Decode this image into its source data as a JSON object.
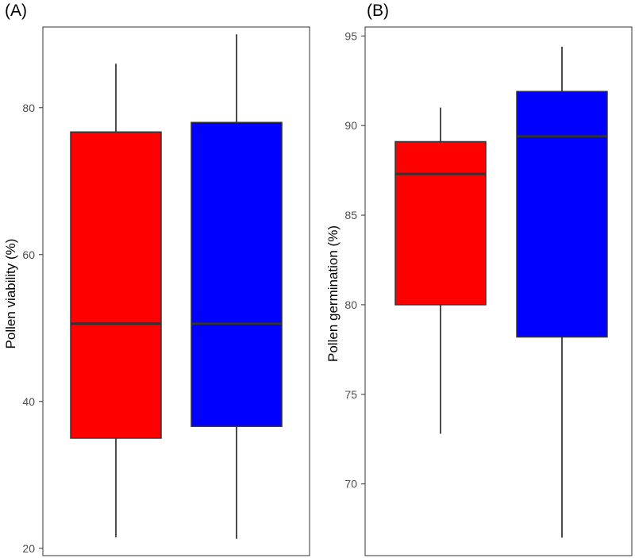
{
  "chart_data": [
    {
      "type": "box",
      "panel_label": "(A)",
      "title": "",
      "xlabel": "",
      "ylabel": "Pollen viability (%)",
      "ylim": [
        19,
        91
      ],
      "yticks": [
        20,
        40,
        60,
        80
      ],
      "grid": false,
      "series": [
        {
          "name": "red group",
          "color": "#ff0000",
          "min": 21.5,
          "q1": 35,
          "median": 50.6,
          "q3": 76.7,
          "max": 86
        },
        {
          "name": "blue group",
          "color": "#0000ff",
          "min": 21.3,
          "q1": 36.6,
          "median": 50.6,
          "q3": 78,
          "max": 90
        }
      ]
    },
    {
      "type": "box",
      "panel_label": "(B)",
      "title": "",
      "xlabel": "",
      "ylabel": "Pollen germination (%)",
      "ylim": [
        66,
        95.5
      ],
      "yticks": [
        70,
        75,
        80,
        85,
        90,
        95
      ],
      "grid": false,
      "series": [
        {
          "name": "red group",
          "color": "#ff0000",
          "min": 72.8,
          "q1": 80,
          "median": 87.3,
          "q3": 89.1,
          "max": 91
        },
        {
          "name": "blue group",
          "color": "#0000ff",
          "min": 67,
          "q1": 78.2,
          "median": 89.4,
          "q3": 91.9,
          "max": 94.4
        }
      ]
    }
  ]
}
